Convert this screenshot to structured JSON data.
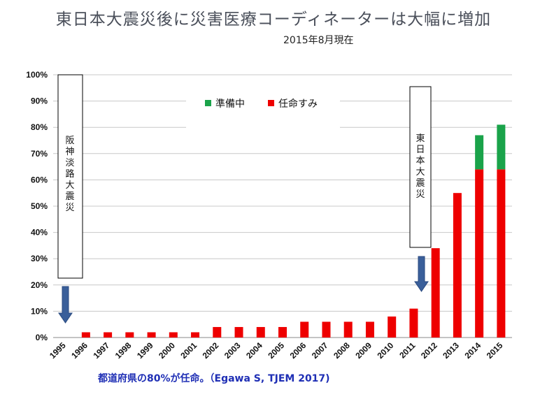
{
  "title": "東日本大震災後に災害医療コーディネーターは大幅に増加",
  "subtitle": "2015年8月現在",
  "caption": "都道府県の80%が任命。（Egawa S, TJEM 2017)",
  "annotations": [
    {
      "text": "阪神淡路大震災",
      "year": "1995"
    },
    {
      "text": "東日本大震災",
      "year": "2011"
    }
  ],
  "colors": {
    "appointed": "#ee0000",
    "preparing": "#1aa34a",
    "arrow": "#3a5f9a",
    "grid": "#c8c8c8"
  },
  "chart_data": {
    "type": "bar",
    "stacked": true,
    "categories": [
      "1995",
      "1996",
      "1997",
      "1998",
      "1999",
      "2000",
      "2001",
      "2002",
      "2003",
      "2004",
      "2005",
      "2006",
      "2007",
      "2008",
      "2009",
      "2010",
      "2011",
      "2012",
      "2013",
      "2014",
      "2015"
    ],
    "series": [
      {
        "name": "任命すみ",
        "color": "#ee0000",
        "values": [
          0,
          2,
          2,
          2,
          2,
          2,
          2,
          4,
          4,
          4,
          4,
          6,
          6,
          6,
          6,
          8,
          11,
          34,
          55,
          64,
          64
        ]
      },
      {
        "name": "準備中",
        "color": "#1aa34a",
        "values": [
          0,
          0,
          0,
          0,
          0,
          0,
          0,
          0,
          0,
          0,
          0,
          0,
          0,
          0,
          0,
          0,
          0,
          0,
          0,
          13,
          17
        ]
      }
    ],
    "yticks": [
      "0%",
      "10%",
      "20%",
      "30%",
      "40%",
      "50%",
      "60%",
      "70%",
      "80%",
      "90%",
      "100%"
    ],
    "ylim": [
      0,
      100
    ],
    "legend": "top-center",
    "grid": true
  }
}
